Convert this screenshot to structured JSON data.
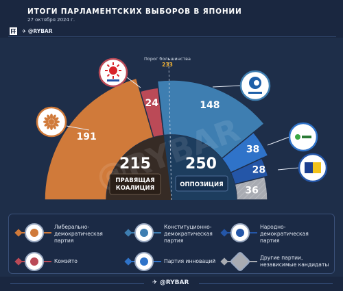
{
  "header": {
    "title": "ИТОГИ ПАРЛАМЕНТСКИХ ВЫБОРОВ В ЯПОНИИ",
    "date": "27 октября 2024 г.",
    "handle": "@RYBAR"
  },
  "chart_data": {
    "type": "pie",
    "subtype": "semicircle-parliament",
    "total_seats": 465,
    "majority_label": "Порог большинства",
    "majority_value": 233,
    "series": [
      {
        "name": "Либерально-демократическая партия",
        "value": 191,
        "group": "ruling",
        "color": "#d07a3a"
      },
      {
        "name": "Комэйто",
        "value": 24,
        "group": "ruling",
        "color": "#bb4a57"
      },
      {
        "name": "Конституционно-демократическая партия",
        "value": 148,
        "group": "opposition",
        "color": "#3e7eb1"
      },
      {
        "name": "Партия инноваций",
        "value": 38,
        "group": "opposition",
        "color": "#2f73c9"
      },
      {
        "name": "Народно-демократическая партия",
        "value": 28,
        "group": "opposition",
        "color": "#2456a8"
      },
      {
        "name": "Другие партии, независимые кандидаты",
        "value": 36,
        "group": "other",
        "color": "#a8abb2"
      }
    ],
    "blocs": [
      {
        "value": 215,
        "label_line1": "ПРАВЯЩАЯ",
        "label_line2": "КОАЛИЦИЯ"
      },
      {
        "value": 250,
        "label_line1": "ОППОЗИЦИЯ",
        "label_line2": ""
      }
    ]
  },
  "legend": {
    "items": [
      {
        "label_line1": "Либерально-",
        "label_line2": "демократическая",
        "label_line3": "партия",
        "icon": "chrysanthemum-icon",
        "color": "#d07a3a"
      },
      {
        "label_line1": "Конституционно-",
        "label_line2": "демократическая",
        "label_line3": "партия",
        "icon": "cdp-logo-icon",
        "color": "#3e7eb1"
      },
      {
        "label_line1": "Народно-",
        "label_line2": "демократическая",
        "label_line3": "партия",
        "icon": "dpfp-logo-icon",
        "color": "#2456a8"
      },
      {
        "label_line1": "Комэйто",
        "label_line2": "",
        "label_line3": "",
        "icon": "komeito-logo-icon",
        "color": "#bb4a57"
      },
      {
        "label_line1": "Партия инноваций",
        "label_line2": "",
        "label_line3": "",
        "icon": "ishin-logo-icon",
        "color": "#2f73c9"
      },
      {
        "label_line1": "Другие партии,",
        "label_line2": "независимые кандидаты",
        "label_line3": "",
        "icon": "others-icon",
        "color": "#a8abb2"
      }
    ]
  },
  "watermark": "@RYBAR",
  "footer": {
    "handle": "@RYBAR"
  }
}
